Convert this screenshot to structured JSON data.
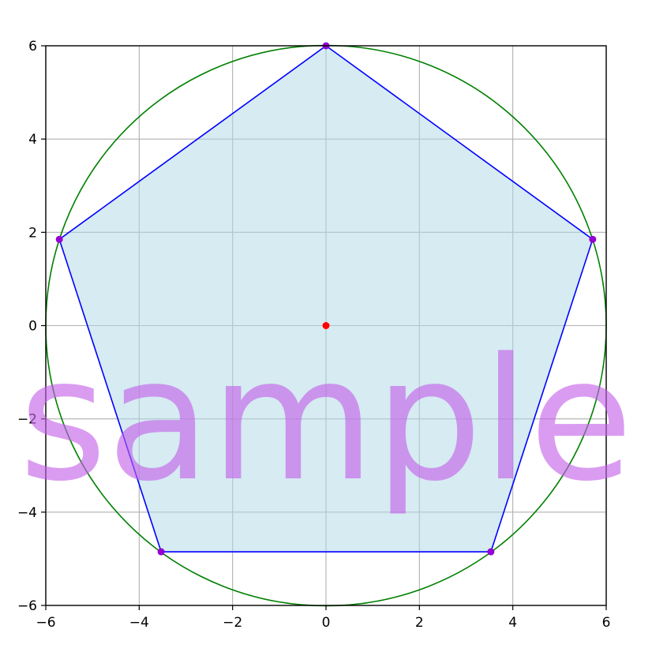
{
  "chart_data": {
    "type": "scatter",
    "title": "",
    "xlabel": "",
    "ylabel": "",
    "xlim": [
      -6,
      6
    ],
    "ylim": [
      -6,
      6
    ],
    "grid": true,
    "x_ticks": [
      -6,
      -4,
      -2,
      0,
      2,
      4,
      6
    ],
    "y_ticks": [
      -6,
      -4,
      -2,
      0,
      2,
      4,
      6
    ],
    "x_tick_labels": [
      "−6",
      "−4",
      "−2",
      "0",
      "2",
      "4",
      "6"
    ],
    "y_tick_labels": [
      "−6",
      "−4",
      "−2",
      "0",
      "2",
      "4",
      "6"
    ],
    "circle": {
      "center": [
        0,
        0
      ],
      "radius": 6,
      "color": "#008000"
    },
    "center_point": {
      "x": 0,
      "y": 0,
      "color": "#ff0000"
    },
    "pentagon": {
      "vertices": [
        {
          "x": 0,
          "y": 6
        },
        {
          "x": 5.71,
          "y": 1.85
        },
        {
          "x": 3.53,
          "y": -4.85
        },
        {
          "x": -3.53,
          "y": -4.85
        },
        {
          "x": -5.71,
          "y": 1.85
        }
      ],
      "edge_color": "#0000ff",
      "fill_color": "#add8e6",
      "vertex_color": "#9400d3"
    },
    "watermark": "sample"
  }
}
